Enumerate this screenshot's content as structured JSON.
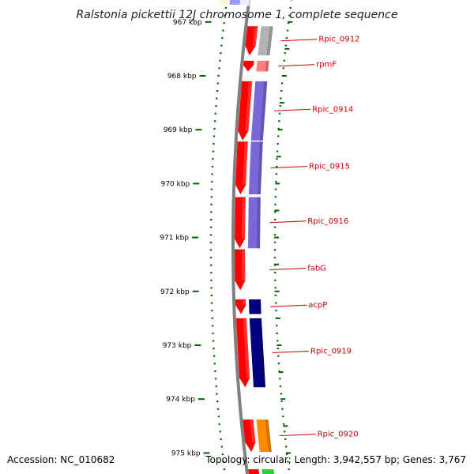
{
  "title": "Ralstonia pickettii 12J chromosome 1, complete sequence",
  "accession_text": "Accession: NC_010682",
  "topology_text": "Topology: circular; Length: 3,942,557 bp; Genes: 3,767",
  "ticks": [
    {
      "label": "967 kbp",
      "kbp": 967
    },
    {
      "label": "968 kbp",
      "kbp": 968
    },
    {
      "label": "969 kbp",
      "kbp": 969
    },
    {
      "label": "970 kbp",
      "kbp": 970
    },
    {
      "label": "971 kbp",
      "kbp": 971
    },
    {
      "label": "972 kbp",
      "kbp": 972
    },
    {
      "label": "973 kbp",
      "kbp": 973
    },
    {
      "label": "974 kbp",
      "kbp": 974
    },
    {
      "label": "975 kbp",
      "kbp": 975
    }
  ],
  "genes": [
    {
      "label": "Rpic_0912",
      "start_kbp": 967.08,
      "end_kbp": 967.62,
      "cds_color": "#b3b3b3"
    },
    {
      "label": "rpmF",
      "start_kbp": 967.72,
      "end_kbp": 967.92,
      "cds_color": "#ff7f7f"
    },
    {
      "label": "Rpic_0914",
      "start_kbp": 968.1,
      "end_kbp": 969.2,
      "cds_color": "#7b68d8"
    },
    {
      "label": "Rpic_0915",
      "start_kbp": 969.22,
      "end_kbp": 970.2,
      "cds_color": "#7b68d8"
    },
    {
      "label": "Rpic_0916",
      "start_kbp": 970.25,
      "end_kbp": 971.2,
      "cds_color": "#7b68d8"
    },
    {
      "label": "fabG",
      "start_kbp": 971.22,
      "end_kbp": 971.98,
      "cds_color": ""
    },
    {
      "label": "acpP",
      "start_kbp": 972.15,
      "end_kbp": 972.42,
      "cds_color": "#000080"
    },
    {
      "label": "Rpic_0919",
      "start_kbp": 972.5,
      "end_kbp": 973.78,
      "cds_color": "#000080"
    },
    {
      "label": "Rpic_0920",
      "start_kbp": 974.38,
      "end_kbp": 974.98,
      "cds_color": "#ff8c00"
    }
  ],
  "colors": {
    "gene_red": "#ff0000",
    "label_red": "#cc0000",
    "tick_green": "#006400",
    "backbone": "#808080"
  }
}
